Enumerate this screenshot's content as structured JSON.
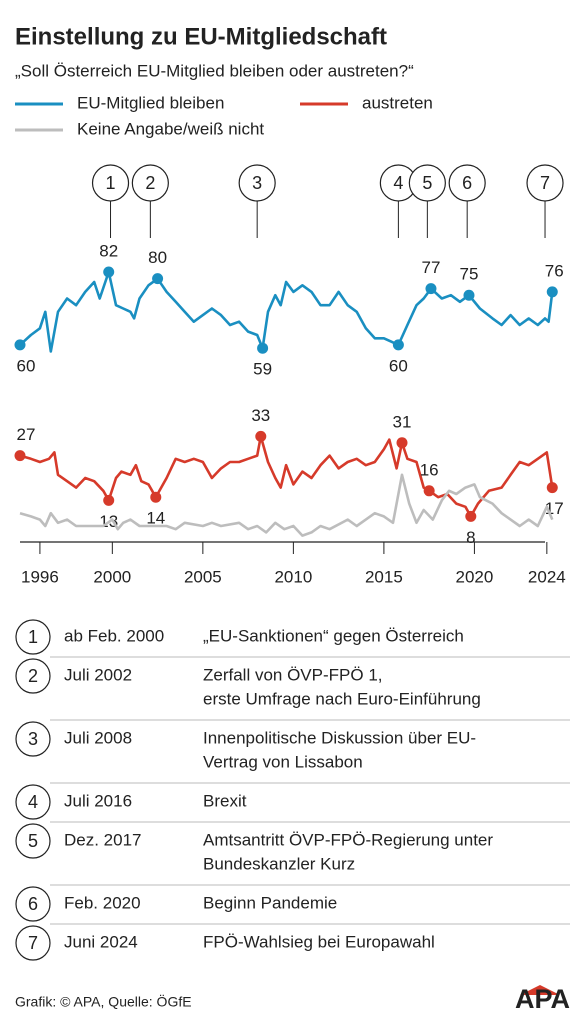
{
  "chart_data": [
    {
      "type": "line",
      "title": "Einstellung zu EU-Mitgliedschaft",
      "subtitle": "„Soll Österreich EU-Mitglied bleiben oder austreten?“",
      "xlim": [
        1994.9,
        2024.6
      ],
      "ylim": [
        50,
        95
      ],
      "annotations": [
        {
          "label": "1",
          "x": 1999.9
        },
        {
          "label": "2",
          "x": 2002.1
        },
        {
          "label": "3",
          "x": 2008.0
        },
        {
          "label": "4",
          "x": 2015.8
        },
        {
          "label": "5",
          "x": 2017.4
        },
        {
          "label": "6",
          "x": 2019.6
        },
        {
          "label": "7",
          "x": 2023.9
        }
      ],
      "series": [
        {
          "name": "EU-Mitglied bleiben",
          "color": "#1a8fc1",
          "x": [
            1994.9,
            1995.5,
            1996,
            1996.3,
            1996.6,
            1997,
            1997.5,
            1998,
            1998.5,
            1999,
            1999.3,
            1999.8,
            2000.2,
            2000.6,
            2001,
            2001.2,
            2001.5,
            2002,
            2002.5,
            2003,
            2003.5,
            2004,
            2004.5,
            2005,
            2005.5,
            2006,
            2006.5,
            2007,
            2007.5,
            2008,
            2008.3,
            2008.6,
            2009,
            2009.3,
            2009.6,
            2010,
            2010.5,
            2011,
            2011.5,
            2012,
            2012.5,
            2013,
            2013.5,
            2014,
            2014.5,
            2015,
            2015.4,
            2015.8,
            2016.3,
            2016.8,
            2017.2,
            2017.6,
            2018.2,
            2018.7,
            2019.2,
            2019.7,
            2020.3,
            2021,
            2021.5,
            2022,
            2022.5,
            2023,
            2023.5,
            2023.9,
            2024.1,
            2024.3
          ],
          "values": [
            60,
            63,
            65,
            70,
            58,
            70,
            74,
            72,
            76,
            79,
            74,
            82,
            72,
            71,
            70,
            68,
            74,
            78,
            80,
            76,
            73,
            70,
            67,
            69,
            71,
            69,
            66,
            67,
            64,
            63,
            59,
            70,
            75,
            72,
            79,
            76,
            78,
            76,
            72,
            72,
            76,
            72,
            70,
            65,
            62,
            62,
            61,
            60,
            66,
            72,
            74,
            77,
            74,
            75,
            73,
            75,
            71,
            68,
            66,
            69,
            66,
            68,
            66,
            68,
            67,
            76
          ],
          "labeled_points": [
            0,
            11,
            18,
            30,
            47,
            51,
            55,
            65
          ]
        }
      ]
    },
    {
      "type": "line",
      "xlim": [
        1994.9,
        2024.6
      ],
      "ylim": [
        0,
        40
      ],
      "xticks": [
        1996,
        2000,
        2005,
        2010,
        2015,
        2020,
        2024
      ],
      "series": [
        {
          "name": "austreten",
          "color": "#d63a2a",
          "x": [
            1994.9,
            1995.5,
            1996,
            1996.5,
            1996.8,
            1997,
            1997.5,
            1998,
            1998.5,
            1999,
            1999.5,
            1999.8,
            2000.2,
            2000.5,
            2001,
            2001.3,
            2001.6,
            2002,
            2002.4,
            2002.8,
            2003,
            2003.5,
            2004,
            2004.5,
            2005,
            2005.5,
            2006,
            2006.5,
            2007,
            2007.5,
            2008,
            2008.2,
            2008.6,
            2009,
            2009.3,
            2009.6,
            2010,
            2010.5,
            2011,
            2011.5,
            2012,
            2012.5,
            2013,
            2013.5,
            2014,
            2014.5,
            2015,
            2015.3,
            2015.7,
            2016,
            2016.3,
            2016.8,
            2017.2,
            2017.5,
            2018,
            2018.5,
            2019,
            2019.5,
            2019.8,
            2020.2,
            2020.8,
            2021.5,
            2022,
            2022.5,
            2023,
            2023.5,
            2024,
            2024.3
          ],
          "values": [
            27,
            26,
            25,
            26,
            28,
            21,
            19,
            17,
            20,
            19,
            16,
            13,
            20,
            22,
            21,
            24,
            19,
            18,
            14,
            18,
            20,
            26,
            25,
            26,
            25,
            20,
            23,
            25,
            25,
            26,
            27,
            33,
            25,
            20,
            17,
            24,
            18,
            22,
            20,
            24,
            27,
            23,
            25,
            26,
            24,
            25,
            29,
            32,
            23,
            31,
            26,
            25,
            17,
            16,
            14,
            15,
            12,
            11,
            8,
            12,
            16,
            17,
            21,
            25,
            24,
            26,
            28,
            17
          ],
          "labeled_points": [
            0,
            11,
            18,
            31,
            49,
            53,
            58,
            67
          ]
        },
        {
          "name": "Keine Angabe/weiß nicht",
          "color": "#bdbdbd",
          "x": [
            1994.9,
            1995.5,
            1996,
            1996.3,
            1996.6,
            1997,
            1997.5,
            1998,
            1999,
            1999.5,
            2000,
            2000.3,
            2000.6,
            2001,
            2001.5,
            2002,
            2003,
            2003.5,
            2004,
            2005,
            2005.5,
            2006,
            2007,
            2007.5,
            2008,
            2008.5,
            2009,
            2009.5,
            2010,
            2010.5,
            2011,
            2011.5,
            2012,
            2013,
            2013.5,
            2014,
            2014.5,
            2015,
            2015.5,
            2016,
            2016.4,
            2016.8,
            2017.2,
            2017.7,
            2018.2,
            2018.6,
            2019,
            2019.5,
            2020,
            2020.3,
            2021,
            2021.5,
            2022,
            2022.5,
            2023,
            2023.5,
            2024,
            2024.3
          ],
          "values": [
            9,
            8,
            7,
            5,
            9,
            6,
            7,
            5,
            5,
            5,
            7,
            4,
            6,
            7,
            5,
            5,
            5,
            4,
            6,
            5,
            6,
            5,
            6,
            4,
            5,
            3,
            6,
            4,
            5,
            2,
            3,
            5,
            4,
            7,
            5,
            7,
            9,
            8,
            6,
            21,
            12,
            6,
            10,
            7,
            13,
            16,
            15,
            17,
            18,
            14,
            12,
            9,
            7,
            5,
            7,
            5,
            11,
            7
          ]
        }
      ]
    }
  ],
  "events": [
    {
      "n": "1",
      "date": "ab Feb. 2000",
      "text": [
        "„EU-Sanktionen“ gegen Österreich"
      ]
    },
    {
      "n": "2",
      "date": "Juli 2002",
      "text": [
        "Zerfall von ÖVP-FPÖ 1,",
        "erste Umfrage nach Euro-Einführung"
      ]
    },
    {
      "n": "3",
      "date": "Juli 2008",
      "text": [
        "Innenpolitische Diskussion über EU-",
        "Vertrag von Lissabon"
      ]
    },
    {
      "n": "4",
      "date": "Juli 2016",
      "text": [
        "Brexit"
      ]
    },
    {
      "n": "5",
      "date": "Dez. 2017",
      "text": [
        "Amtsantritt ÖVP-FPÖ-Regierung unter",
        "Bundeskanzler Kurz"
      ]
    },
    {
      "n": "6",
      "date": "Feb. 2020",
      "text": [
        "Beginn Pandemie"
      ]
    },
    {
      "n": "7",
      "date": "Juni 2024",
      "text": [
        "FPÖ-Wahlsieg bei Europawahl"
      ]
    }
  ],
  "footer": {
    "source": "Grafik: © APA, Quelle: ÖGfE",
    "logo": "APA"
  }
}
